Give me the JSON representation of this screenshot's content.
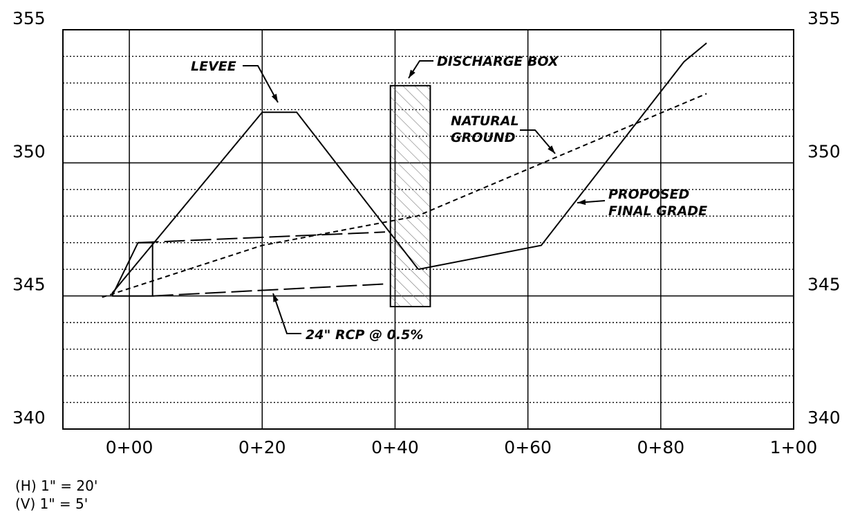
{
  "chart_data": {
    "type": "line",
    "title": "",
    "xlabel": "",
    "ylabel": "",
    "xlim": [
      -10,
      100
    ],
    "ylim": [
      340,
      355
    ],
    "grid": true,
    "x_ticks": [
      {
        "x": 0,
        "label": "0+00"
      },
      {
        "x": 20,
        "label": "0+20"
      },
      {
        "x": 40,
        "label": "0+40"
      },
      {
        "x": 60,
        "label": "0+60"
      },
      {
        "x": 80,
        "label": "0+80"
      },
      {
        "x": 100,
        "label": "1+00"
      }
    ],
    "y_ticks": [
      {
        "y": 340,
        "label": "340"
      },
      {
        "y": 345,
        "label": "345"
      },
      {
        "y": 350,
        "label": "350"
      },
      {
        "y": 355,
        "label": "355"
      }
    ],
    "series": [
      {
        "key": "levee",
        "style": "solid",
        "points": [
          [
            -2.6,
            345.1
          ],
          [
            20,
            351.9
          ],
          [
            25.2,
            351.9
          ],
          [
            43.5,
            346
          ]
        ]
      },
      {
        "key": "final_grade",
        "style": "solid",
        "points": [
          [
            43.5,
            346
          ],
          [
            62,
            346.9
          ],
          [
            83.5,
            353.8
          ],
          [
            86.9,
            354.5
          ]
        ]
      },
      {
        "key": "natural_ground",
        "style": "short-dash",
        "points": [
          [
            -4.1,
            344.95
          ],
          [
            20,
            346.9
          ],
          [
            43.3,
            348
          ],
          [
            86.9,
            352.6
          ]
        ]
      },
      {
        "key": "pipe_top",
        "style": "long-dash",
        "points": [
          [
            1.3,
            347
          ],
          [
            38.5,
            347.4
          ]
        ]
      },
      {
        "key": "pipe_bottom",
        "style": "long-dash",
        "points": [
          [
            3.5,
            345
          ],
          [
            38.5,
            345.45
          ]
        ]
      }
    ],
    "pipe_headwall": {
      "x_left_base": -2.6,
      "x_left_top": 1.3,
      "x_right": 3.5,
      "y_top": 347,
      "y_bottom": 345
    },
    "discharge_box": {
      "x1": 39.3,
      "x2": 45.3,
      "y1": 344.6,
      "y2": 352.9
    },
    "callouts": [
      {
        "key": "levee",
        "lines": [
          "LEVEE"
        ]
      },
      {
        "key": "box",
        "lines": [
          "DISCHARGE BOX"
        ]
      },
      {
        "key": "ground",
        "lines": [
          "NATURAL",
          "GROUND"
        ]
      },
      {
        "key": "grade",
        "lines": [
          "PROPOSED",
          "FINAL GRADE"
        ]
      },
      {
        "key": "pipe",
        "lines": [
          "24\" RCP @ 0.5%"
        ]
      }
    ]
  },
  "scale_notes": [
    "(H) 1\" = 20'",
    "(V) 1\" = 5'"
  ]
}
